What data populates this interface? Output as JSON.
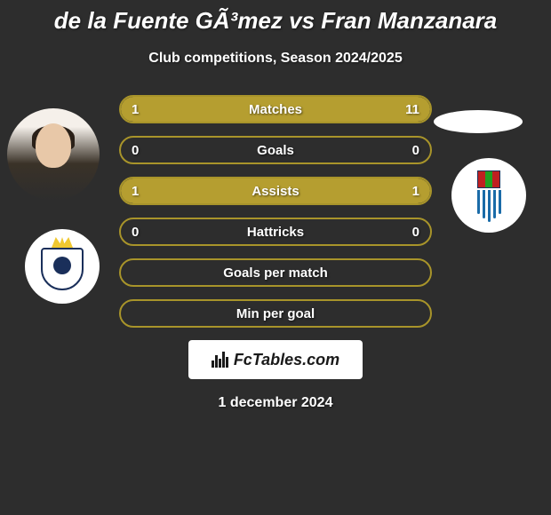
{
  "title": "de la Fuente GÃ³mez vs Fran Manzanara",
  "subtitle": "Club competitions, Season 2024/2025",
  "date": "1 december 2024",
  "footer_brand": "FcTables.com",
  "colors": {
    "background": "#2d2d2d",
    "bar_border": "#a8942a",
    "bar_fill": "#b59e30",
    "text": "#ffffff"
  },
  "stats": [
    {
      "label": "Matches",
      "left_value": "1",
      "right_value": "11",
      "left_pct": 8.3,
      "right_pct": 91.7
    },
    {
      "label": "Goals",
      "left_value": "0",
      "right_value": "0",
      "left_pct": 0,
      "right_pct": 0
    },
    {
      "label": "Assists",
      "left_value": "1",
      "right_value": "1",
      "left_pct": 50,
      "right_pct": 50
    },
    {
      "label": "Hattricks",
      "left_value": "0",
      "right_value": "0",
      "left_pct": 0,
      "right_pct": 0
    },
    {
      "label": "Goals per match",
      "left_value": "",
      "right_value": "",
      "left_pct": 0,
      "right_pct": 0
    },
    {
      "label": "Min per goal",
      "left_value": "",
      "right_value": "",
      "left_pct": 0,
      "right_pct": 0
    }
  ]
}
